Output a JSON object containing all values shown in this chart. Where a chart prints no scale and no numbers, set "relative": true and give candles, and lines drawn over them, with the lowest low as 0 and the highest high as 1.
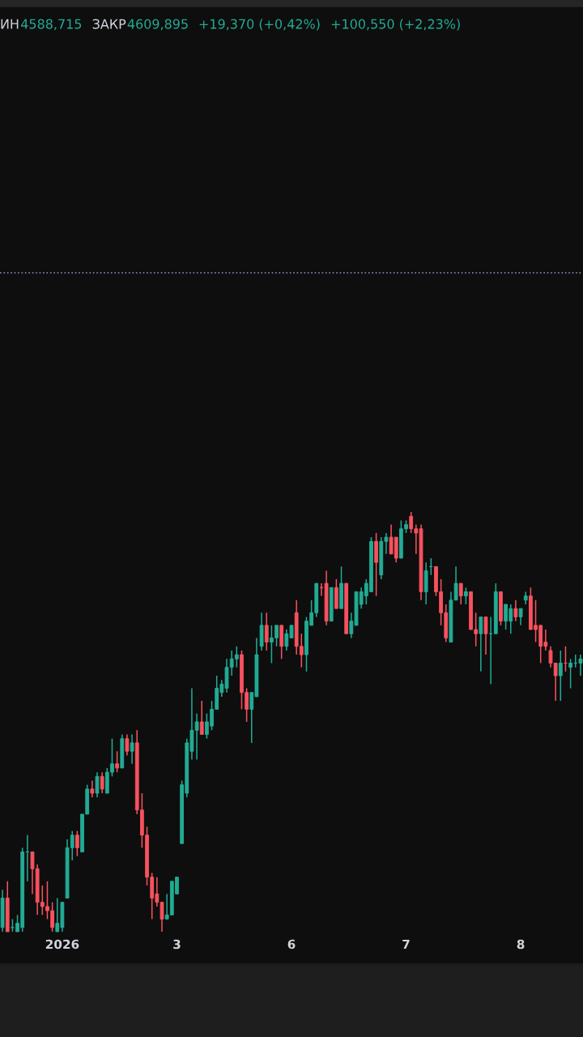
{
  "chart_data": {
    "type": "candlestick",
    "relative": true,
    "annotations": [
      "ИН",
      "4588,715",
      "ЗАКР",
      "4609,895",
      "+19,370 (+0,42%)",
      "+100,550 (+2,23%)"
    ],
    "categories": [
      null,
      null,
      null,
      null,
      null,
      null,
      null,
      null,
      null,
      null,
      null,
      null,
      "2026",
      null,
      null,
      null,
      null,
      null,
      null,
      null,
      null,
      null,
      null,
      null,
      null,
      null,
      null,
      null,
      null,
      null,
      null,
      null,
      null,
      null,
      null,
      "3",
      null,
      null,
      null,
      null,
      null,
      null,
      null,
      null,
      null,
      null,
      null,
      null,
      null,
      null,
      null,
      null,
      null,
      null,
      null,
      null,
      null,
      null,
      "6",
      null,
      null,
      null,
      null,
      null,
      null,
      null,
      null,
      null,
      null,
      null,
      null,
      null,
      null,
      null,
      null,
      null,
      null,
      null,
      null,
      null,
      null,
      "7",
      null,
      null,
      null,
      null,
      null,
      null,
      null,
      null,
      null,
      null,
      null,
      null,
      null,
      null,
      null,
      null,
      null,
      null,
      null,
      null,
      null,
      null,
      "8",
      null,
      null,
      null,
      null,
      null,
      null,
      null,
      null,
      null,
      null,
      null,
      null
    ],
    "ohlc": [
      [
        0.01,
        0.1,
        0.0,
        0.08
      ],
      [
        0.08,
        0.12,
        0.0,
        0.0
      ],
      [
        0.01,
        0.03,
        0.0,
        0.01
      ],
      [
        0.0,
        0.04,
        0.0,
        0.02
      ],
      [
        0.01,
        0.2,
        0.0,
        0.19
      ],
      [
        0.19,
        0.23,
        0.12,
        0.19
      ],
      [
        0.19,
        0.19,
        0.09,
        0.15
      ],
      [
        0.15,
        0.16,
        0.04,
        0.07
      ],
      [
        0.07,
        0.11,
        0.04,
        0.06
      ],
      [
        0.06,
        0.12,
        0.03,
        0.05
      ],
      [
        0.05,
        0.07,
        0.0,
        0.01
      ],
      [
        0.0,
        0.08,
        0.0,
        0.02
      ],
      [
        0.01,
        0.07,
        0.0,
        0.07
      ],
      [
        0.08,
        0.22,
        0.08,
        0.2
      ],
      [
        0.2,
        0.24,
        0.17,
        0.23
      ],
      [
        0.23,
        0.24,
        0.18,
        0.2
      ],
      [
        0.19,
        0.28,
        0.19,
        0.28
      ],
      [
        0.28,
        0.35,
        0.28,
        0.34
      ],
      [
        0.34,
        0.36,
        0.32,
        0.33
      ],
      [
        0.33,
        0.38,
        0.32,
        0.37
      ],
      [
        0.37,
        0.38,
        0.33,
        0.34
      ],
      [
        0.33,
        0.39,
        0.33,
        0.38
      ],
      [
        0.38,
        0.46,
        0.37,
        0.4
      ],
      [
        0.4,
        0.43,
        0.38,
        0.39
      ],
      [
        0.39,
        0.47,
        0.39,
        0.46
      ],
      [
        0.46,
        0.47,
        0.42,
        0.43
      ],
      [
        0.43,
        0.47,
        0.4,
        0.45
      ],
      [
        0.45,
        0.48,
        0.28,
        0.29
      ],
      [
        0.29,
        0.33,
        0.2,
        0.23
      ],
      [
        0.23,
        0.25,
        0.11,
        0.13
      ],
      [
        0.13,
        0.14,
        0.03,
        0.08
      ],
      [
        0.09,
        0.13,
        0.06,
        0.07
      ],
      [
        0.07,
        0.07,
        0.0,
        0.03
      ],
      [
        0.03,
        0.09,
        0.03,
        0.04
      ],
      [
        0.04,
        0.12,
        0.04,
        0.12
      ],
      [
        0.09,
        0.13,
        0.09,
        0.13
      ],
      [
        0.21,
        0.36,
        0.21,
        0.35
      ],
      [
        0.33,
        0.46,
        0.32,
        0.45
      ],
      [
        0.43,
        0.58,
        0.41,
        0.48
      ],
      [
        0.48,
        0.52,
        0.41,
        0.5
      ],
      [
        0.5,
        0.55,
        0.47,
        0.47
      ],
      [
        0.47,
        0.52,
        0.46,
        0.5
      ],
      [
        0.49,
        0.55,
        0.48,
        0.53
      ],
      [
        0.53,
        0.61,
        0.53,
        0.58
      ],
      [
        0.57,
        0.6,
        0.56,
        0.59
      ],
      [
        0.58,
        0.65,
        0.57,
        0.63
      ],
      [
        0.63,
        0.67,
        0.61,
        0.65
      ],
      [
        0.65,
        0.68,
        0.63,
        0.66
      ],
      [
        0.66,
        0.67,
        0.53,
        0.57
      ],
      [
        0.57,
        0.58,
        0.5,
        0.53
      ],
      [
        0.53,
        0.57,
        0.45,
        0.57
      ],
      [
        0.56,
        0.7,
        0.56,
        0.66
      ],
      [
        0.68,
        0.76,
        0.67,
        0.73
      ],
      [
        0.73,
        0.76,
        0.67,
        0.69
      ],
      [
        0.69,
        0.73,
        0.64,
        0.7
      ],
      [
        0.7,
        0.73,
        0.68,
        0.73
      ],
      [
        0.73,
        0.73,
        0.65,
        0.68
      ],
      [
        0.68,
        0.72,
        0.67,
        0.71
      ],
      [
        0.7,
        0.73,
        0.7,
        0.73
      ],
      [
        0.76,
        0.79,
        0.66,
        0.68
      ],
      [
        0.68,
        0.71,
        0.63,
        0.66
      ],
      [
        0.66,
        0.75,
        0.62,
        0.74
      ],
      [
        0.73,
        0.79,
        0.73,
        0.76
      ],
      [
        0.76,
        0.83,
        0.75,
        0.83
      ],
      [
        0.82,
        0.83,
        0.8,
        0.82
      ],
      [
        0.83,
        0.86,
        0.73,
        0.74
      ],
      [
        0.74,
        0.82,
        0.74,
        0.82
      ],
      [
        0.82,
        0.84,
        0.77,
        0.77
      ],
      [
        0.77,
        0.87,
        0.77,
        0.83
      ],
      [
        0.83,
        0.83,
        0.71,
        0.71
      ],
      [
        0.71,
        0.76,
        0.7,
        0.74
      ],
      [
        0.73,
        0.81,
        0.73,
        0.81
      ],
      [
        0.78,
        0.82,
        0.77,
        0.81
      ],
      [
        0.8,
        0.84,
        0.78,
        0.83
      ],
      [
        0.81,
        0.94,
        0.81,
        0.93
      ],
      [
        0.93,
        0.95,
        0.8,
        0.88
      ],
      [
        0.85,
        0.94,
        0.84,
        0.93
      ],
      [
        0.93,
        0.95,
        0.9,
        0.94
      ],
      [
        0.94,
        0.97,
        0.9,
        0.9
      ],
      [
        0.94,
        0.94,
        0.88,
        0.89
      ],
      [
        0.89,
        0.98,
        0.89,
        0.96
      ],
      [
        0.96,
        0.98,
        0.95,
        0.97
      ],
      [
        0.99,
        1.0,
        0.95,
        0.96
      ],
      [
        0.96,
        0.97,
        0.9,
        0.95
      ],
      [
        0.96,
        0.97,
        0.79,
        0.81
      ],
      [
        0.81,
        0.88,
        0.78,
        0.86
      ],
      [
        0.87,
        0.89,
        0.85,
        0.87
      ],
      [
        0.87,
        0.87,
        0.8,
        0.81
      ],
      [
        0.81,
        0.84,
        0.73,
        0.76
      ],
      [
        0.76,
        0.78,
        0.69,
        0.7
      ],
      [
        0.69,
        0.81,
        0.69,
        0.79
      ],
      [
        0.79,
        0.87,
        0.79,
        0.83
      ],
      [
        0.83,
        0.83,
        0.78,
        0.8
      ],
      [
        0.8,
        0.82,
        0.78,
        0.81
      ],
      [
        0.81,
        0.81,
        0.72,
        0.72
      ],
      [
        0.72,
        0.76,
        0.68,
        0.71
      ],
      [
        0.71,
        0.75,
        0.62,
        0.75
      ],
      [
        0.75,
        0.75,
        0.66,
        0.71
      ],
      [
        0.71,
        0.75,
        0.59,
        0.71
      ],
      [
        0.71,
        0.83,
        0.71,
        0.81
      ],
      [
        0.81,
        0.81,
        0.73,
        0.74
      ],
      [
        0.74,
        0.78,
        0.72,
        0.78
      ],
      [
        0.74,
        0.78,
        0.71,
        0.77
      ],
      [
        0.77,
        0.79,
        0.74,
        0.75
      ],
      [
        0.75,
        0.77,
        0.73,
        0.77
      ],
      [
        0.79,
        0.81,
        0.78,
        0.8
      ],
      [
        0.8,
        0.82,
        0.72,
        0.72
      ],
      [
        0.73,
        0.79,
        0.69,
        0.72
      ],
      [
        0.73,
        0.73,
        0.64,
        0.68
      ],
      [
        0.69,
        0.72,
        0.67,
        0.68
      ],
      [
        0.67,
        0.68,
        0.63,
        0.64
      ],
      [
        0.64,
        0.64,
        0.55,
        0.61
      ],
      [
        0.61,
        0.67,
        0.55,
        0.64
      ],
      [
        0.64,
        0.68,
        0.62,
        0.64
      ],
      [
        0.63,
        0.65,
        0.58,
        0.64
      ],
      [
        0.64,
        0.66,
        0.63,
        0.64
      ],
      [
        0.64,
        0.66,
        0.61,
        0.65
      ]
    ],
    "colors": [
      "#22ab94",
      "#f7525f",
      "#22ab94",
      "#22ab94",
      "#22ab94",
      "#22ab94",
      "#f7525f",
      "#f7525f",
      "#f7525f",
      "#f7525f",
      "#f7525f",
      "#22ab94",
      "#22ab94",
      "#22ab94",
      "#22ab94",
      "#f7525f",
      "#22ab94",
      "#22ab94",
      "#f7525f",
      "#22ab94",
      "#f7525f",
      "#22ab94",
      "#22ab94",
      "#f7525f",
      "#22ab94",
      "#f7525f",
      "#22ab94",
      "#f7525f",
      "#f7525f",
      "#f7525f",
      "#f7525f",
      "#f7525f",
      "#f7525f",
      "#22ab94",
      "#22ab94",
      "#22ab94",
      "#22ab94",
      "#22ab94",
      "#22ab94",
      "#22ab94",
      "#f7525f",
      "#22ab94",
      "#22ab94",
      "#22ab94",
      "#22ab94",
      "#22ab94",
      "#22ab94",
      "#22ab94",
      "#f7525f",
      "#f7525f",
      "#22ab94",
      "#22ab94",
      "#22ab94",
      "#f7525f",
      "#22ab94",
      "#22ab94",
      "#f7525f",
      "#22ab94",
      "#22ab94",
      "#f7525f",
      "#f7525f",
      "#22ab94",
      "#22ab94",
      "#22ab94",
      "#f7525f",
      "#f7525f",
      "#22ab94",
      "#f7525f",
      "#22ab94",
      "#f7525f",
      "#22ab94",
      "#22ab94",
      "#22ab94",
      "#22ab94",
      "#22ab94",
      "#f7525f",
      "#22ab94",
      "#22ab94",
      "#f7525f",
      "#f7525f",
      "#22ab94",
      "#22ab94",
      "#f7525f",
      "#f7525f",
      "#f7525f",
      "#22ab94",
      "#22ab94",
      "#f7525f",
      "#f7525f",
      "#f7525f",
      "#22ab94",
      "#22ab94",
      "#f7525f",
      "#22ab94",
      "#f7525f",
      "#f7525f",
      "#22ab94",
      "#f7525f",
      "#22ab94",
      "#22ab94",
      "#f7525f",
      "#22ab94",
      "#22ab94",
      "#f7525f",
      "#22ab94",
      "#22ab94",
      "#f7525f",
      "#f7525f",
      "#f7525f",
      "#f7525f",
      "#f7525f",
      "#f7525f",
      "#22ab94",
      "#f7525f",
      "#22ab94",
      "#22ab94",
      "#22ab94"
    ],
    "ref_lines": [
      {
        "axis": "y",
        "value": 1.57,
        "color": "#8a90b8",
        "line_style": "dotted"
      }
    ],
    "grid": false,
    "legend": false
  }
}
